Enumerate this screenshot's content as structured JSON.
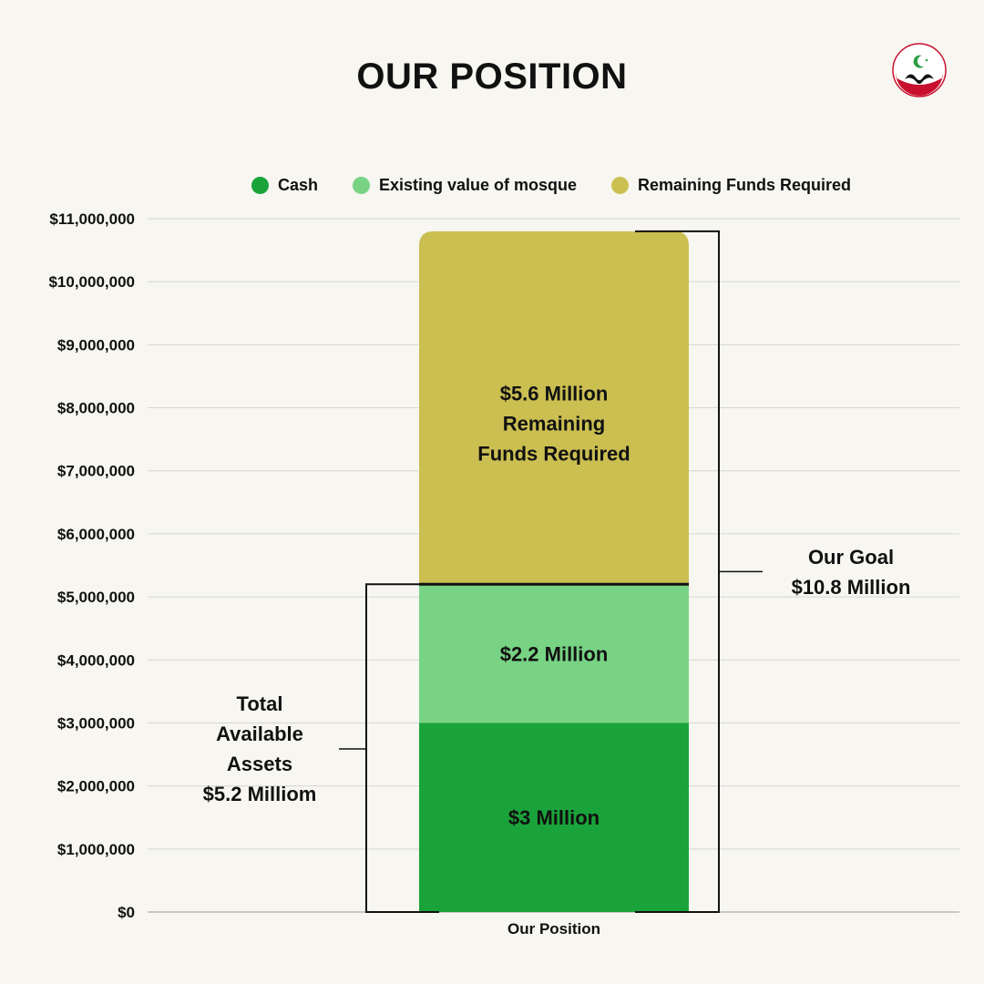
{
  "title": "OUR POSITION",
  "logo": {
    "icon": "mosque-crescent-logo-icon",
    "colors": [
      "#c8102e",
      "#111111",
      "#2e9e44"
    ]
  },
  "chart_data": {
    "type": "bar",
    "stacked": true,
    "categories": [
      "Our Position"
    ],
    "series": [
      {
        "name": "Cash",
        "values": [
          3000000
        ],
        "color": "#1aa33a",
        "label": "$3 Million"
      },
      {
        "name": "Existing value of mosque",
        "values": [
          2200000
        ],
        "color": "#78d385",
        "label": "$2.2 Million"
      },
      {
        "name": "Remaining Funds Required",
        "values": [
          5600000
        ],
        "color": "#cbbf52",
        "label": "$5.6 Million Remaining Funds Required"
      }
    ],
    "ylim": [
      0,
      11000000
    ],
    "yticks": [
      "$0",
      "$1,000,000",
      "$2,000,000",
      "$3,000,000",
      "$4,000,000",
      "$5,000,000",
      "$6,000,000",
      "$7,000,000",
      "$8,000,000",
      "$9,000,000",
      "$10,000,000",
      "$11,000,000"
    ],
    "ytick_values": [
      0,
      1000000,
      2000000,
      3000000,
      4000000,
      5000000,
      6000000,
      7000000,
      8000000,
      9000000,
      10000000,
      11000000
    ],
    "grid": true,
    "legend_position": "top",
    "annotations": [
      {
        "name": "goal",
        "lines": [
          "Our Goal",
          "$10.8 Million"
        ],
        "from": 0,
        "to": 10800000,
        "side": "right"
      },
      {
        "name": "assets",
        "lines": [
          "Total",
          "Available",
          "Assets",
          "$5.2 Milliom"
        ],
        "from": 0,
        "to": 5200000,
        "side": "left"
      }
    ]
  }
}
